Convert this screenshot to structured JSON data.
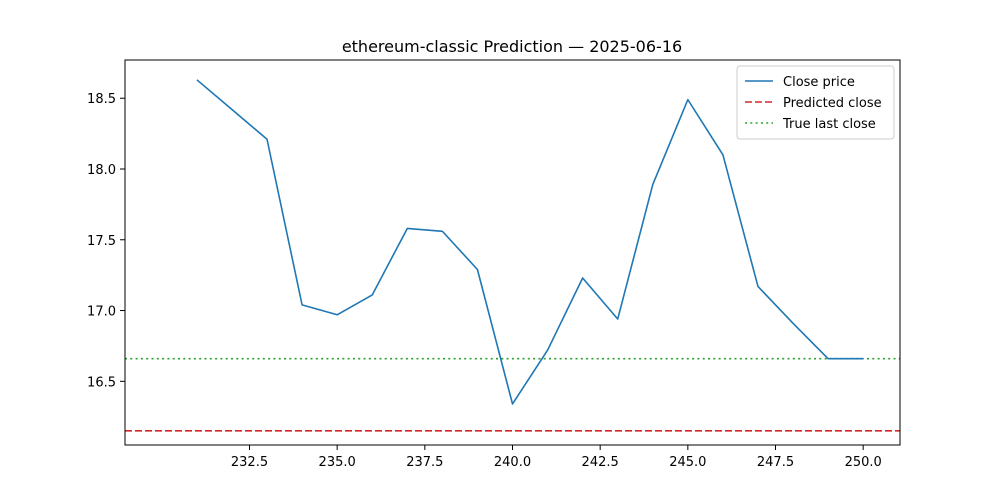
{
  "chart_data": {
    "type": "line",
    "title": "ethereum-classic Prediction — 2025-06-16",
    "xlabel": "",
    "ylabel": "",
    "xlim": [
      228.95,
      251.05
    ],
    "ylim": [
      16.05,
      18.77
    ],
    "x_ticks": [
      232.5,
      235.0,
      237.5,
      240.0,
      242.5,
      245.0,
      247.5,
      250.0
    ],
    "x_tick_labels": [
      "232.5",
      "235.0",
      "237.5",
      "240.0",
      "242.5",
      "245.0",
      "247.5",
      "250.0"
    ],
    "y_ticks": [
      16.5,
      17.0,
      17.5,
      18.0,
      18.5
    ],
    "y_tick_labels": [
      "16.5",
      "17.0",
      "17.5",
      "18.0",
      "18.5"
    ],
    "grid": false,
    "legend_position": "top-right",
    "series": [
      {
        "name": "Close price",
        "color": "#1f77b4",
        "style": "solid",
        "x": [
          231,
          232,
          233,
          234,
          235,
          236,
          237,
          238,
          239,
          240,
          241,
          242,
          243,
          244,
          245,
          246,
          247,
          248,
          249,
          250
        ],
        "y": [
          18.63,
          18.42,
          18.21,
          17.04,
          16.97,
          17.11,
          17.58,
          17.56,
          17.29,
          16.34,
          16.72,
          17.23,
          16.94,
          17.89,
          18.49,
          18.1,
          17.17,
          16.91,
          16.66,
          16.66
        ]
      }
    ],
    "hlines": [
      {
        "name": "Predicted close",
        "color": "#d62728",
        "style": "dashed",
        "y": 16.15
      },
      {
        "name": "True last close",
        "color": "#2ca02c",
        "style": "dotted",
        "y": 16.66
      }
    ]
  }
}
